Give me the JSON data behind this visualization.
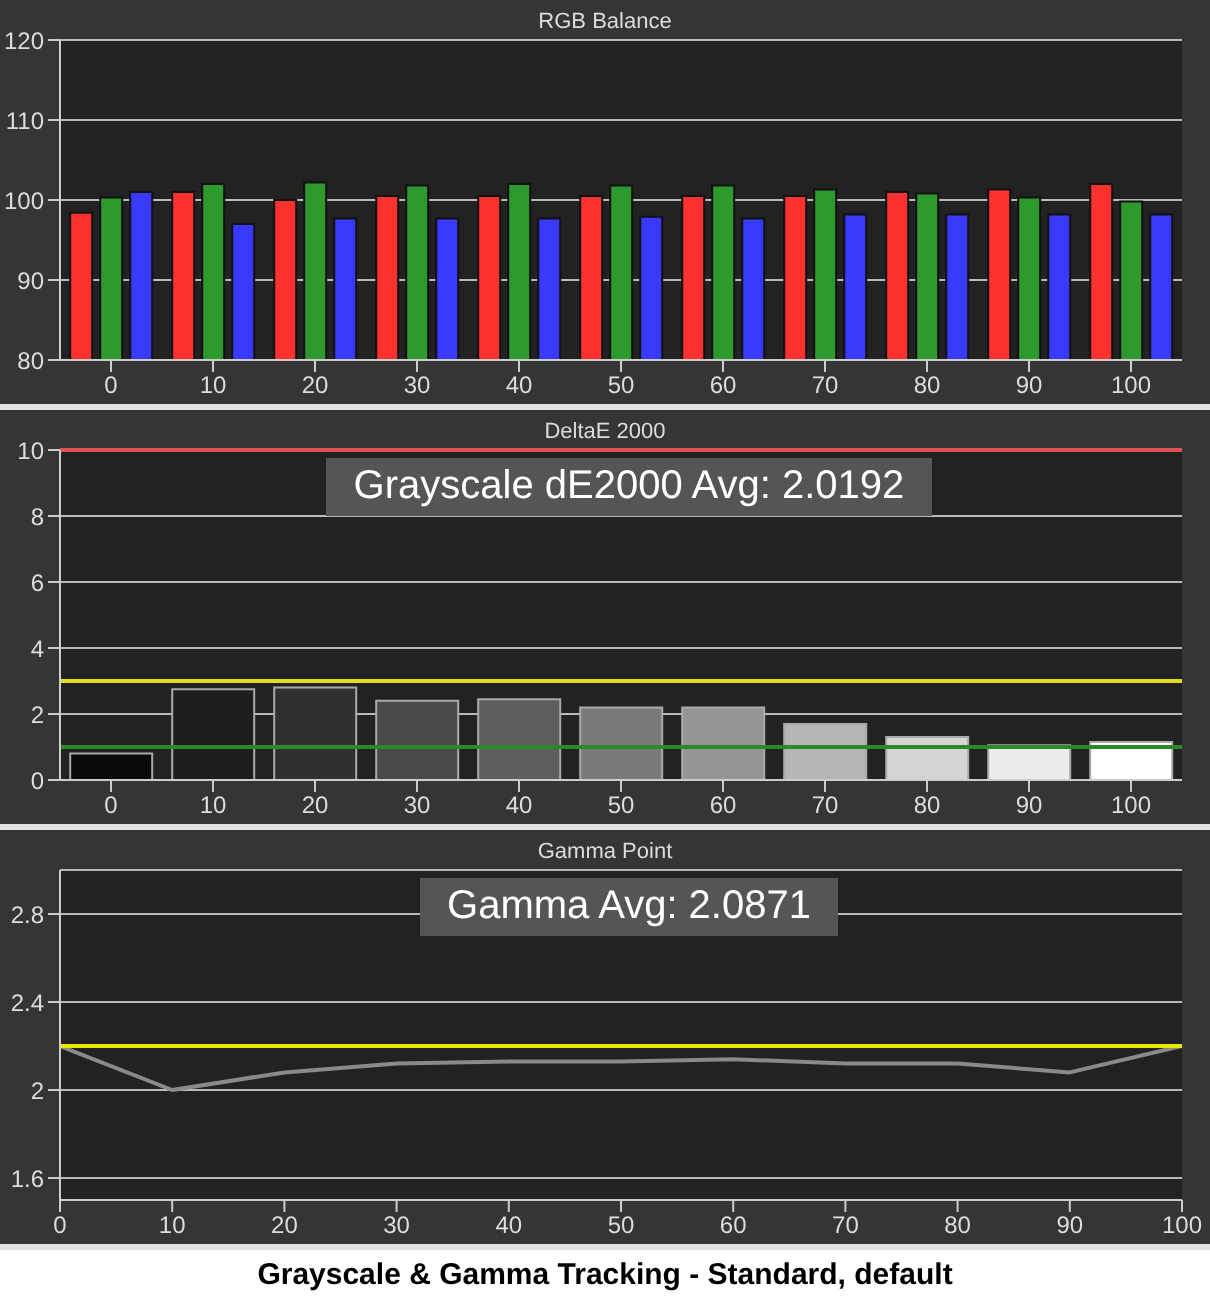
{
  "chart_data": [
    {
      "type": "bar",
      "title": "RGB Balance",
      "categories": [
        "0",
        "10",
        "20",
        "30",
        "40",
        "50",
        "60",
        "70",
        "80",
        "90",
        "100"
      ],
      "series": [
        {
          "color": "#ff3030",
          "values": [
            98.4,
            101,
            100,
            100.5,
            100.5,
            100.5,
            100.5,
            100.5,
            101,
            101.3,
            102
          ]
        },
        {
          "color": "#2e9a2e",
          "values": [
            100.3,
            102,
            102.2,
            101.8,
            102,
            101.8,
            101.8,
            101.3,
            100.8,
            100.3,
            99.8
          ]
        },
        {
          "color": "#3a3aff",
          "values": [
            101,
            97,
            97.7,
            97.7,
            97.7,
            97.9,
            97.7,
            98.2,
            98.2,
            98.2,
            98.2
          ]
        }
      ],
      "ylim": [
        80,
        120
      ],
      "yticks": [
        80,
        90,
        100,
        110,
        120
      ],
      "grid": "y"
    },
    {
      "type": "bar",
      "title": "DeltaE 2000",
      "categories": [
        "0",
        "10",
        "20",
        "30",
        "40",
        "50",
        "60",
        "70",
        "80",
        "90",
        "100"
      ],
      "values": [
        0.8,
        2.75,
        2.8,
        2.4,
        2.45,
        2.2,
        2.2,
        1.7,
        1.3,
        1.05,
        1.15
      ],
      "colors": [
        "#0a0a0a",
        "#1e1e1e",
        "#303030",
        "#4a4a4a",
        "#5e5e5e",
        "#7a7a7a",
        "#959595",
        "#b5b5b5",
        "#d5d5d5",
        "#ececec",
        "#ffffff"
      ],
      "ylim": [
        0,
        10
      ],
      "yticks": [
        0,
        2,
        4,
        6,
        8,
        10
      ],
      "grid": "y",
      "ref_lines": [
        {
          "axis": "y",
          "value": 10,
          "color": "#e05050"
        },
        {
          "axis": "y",
          "value": 3,
          "color": "#e0e020"
        },
        {
          "axis": "y",
          "value": 1,
          "color": "#2a8a2a"
        }
      ],
      "annotations": [
        "Grayscale dE2000 Avg: 2.0192"
      ]
    },
    {
      "type": "line",
      "title": "Gamma Point",
      "x": [
        0,
        10,
        20,
        30,
        40,
        50,
        60,
        70,
        80,
        90,
        100
      ],
      "series": [
        {
          "color": "#8a8a8a",
          "values": [
            2.2,
            2.0,
            2.08,
            2.12,
            2.13,
            2.13,
            2.14,
            2.12,
            2.12,
            2.08,
            2.2
          ]
        }
      ],
      "xlim": [
        0,
        100
      ],
      "xticks": [
        0,
        10,
        20,
        30,
        40,
        50,
        60,
        70,
        80,
        90,
        100
      ],
      "ylim": [
        1.5,
        3.0
      ],
      "yticks": [
        1.6,
        2,
        2.4,
        2.8
      ],
      "grid": "y",
      "marker": "none",
      "ref_lines": [
        {
          "axis": "y",
          "value": 2.2,
          "color": "#e8e800"
        }
      ],
      "annotations": [
        "Gamma Avg: 2.0871",
        "Grayscale & Gamma Tracking - Standard, default"
      ]
    }
  ]
}
